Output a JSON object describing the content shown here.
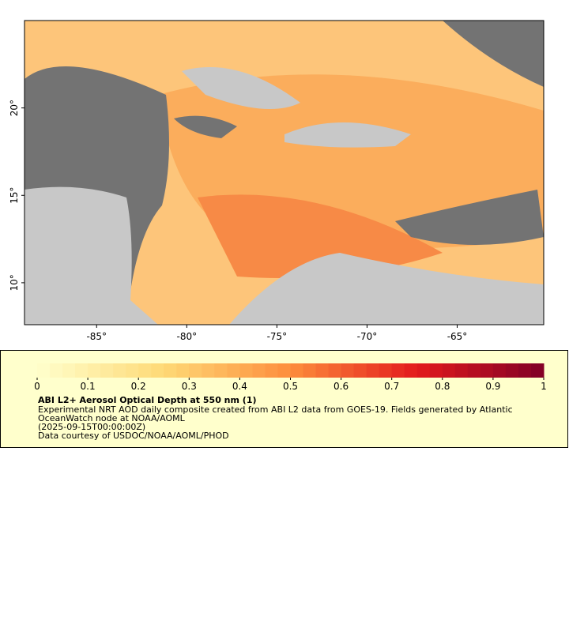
{
  "map": {
    "xlim": [
      -89,
      -60.2
    ],
    "ylim": [
      7.6,
      25
    ],
    "xticks": [
      {
        "value": -85,
        "label": "-85°"
      },
      {
        "value": -80,
        "label": "-80°"
      },
      {
        "value": -75,
        "label": "-75°"
      },
      {
        "value": -70,
        "label": "-70°"
      },
      {
        "value": -65,
        "label": "-65°"
      }
    ],
    "yticks": [
      {
        "value": 10,
        "label": "10°"
      },
      {
        "value": 15,
        "label": "15°"
      },
      {
        "value": 20,
        "label": "20°"
      }
    ]
  },
  "colorbar": {
    "lim": [
      0,
      1
    ],
    "ticks": [
      0,
      0.1,
      0.2,
      0.3,
      0.4,
      0.5,
      0.6,
      0.7,
      0.8,
      0.9,
      1
    ]
  },
  "legend": {
    "title": "ABI L2+ Aerosol Optical Depth at 550 nm (1)",
    "lines": [
      "Experimental NRT AOD daily composite created from ABI L2 data from GOES-19. Fields generated by Atlantic",
      "OceanWatch node at NOAA/AOML",
      "(2025-09-15T00:00:00Z)",
      "Data courtesy of USDOC/NOAA/AOML/PHOD"
    ]
  }
}
